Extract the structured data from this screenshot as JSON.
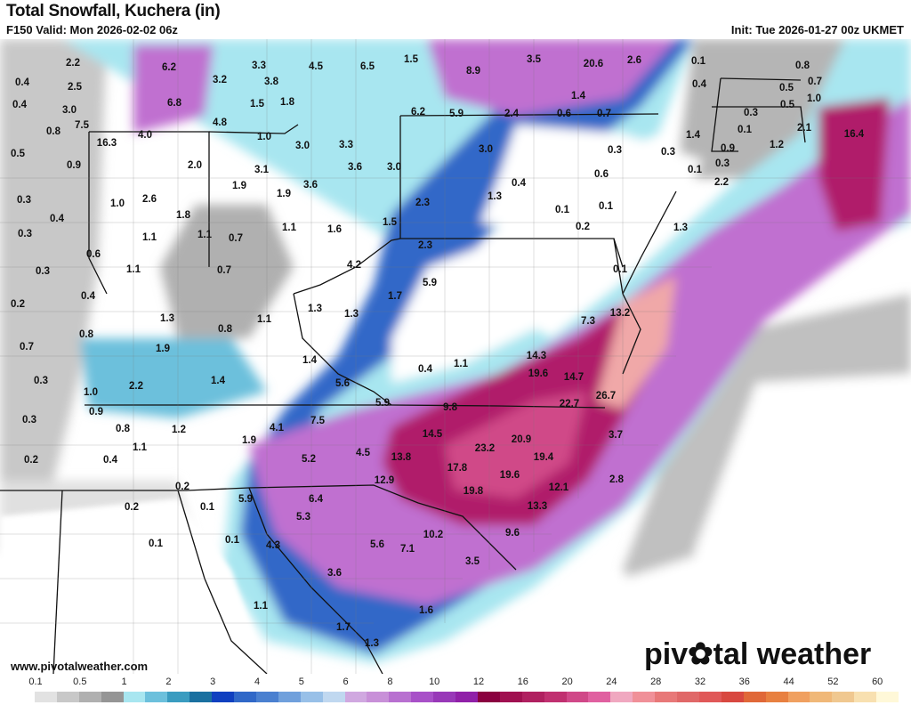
{
  "header": {
    "title": "Total Snowfall, Kuchera (in)",
    "valid": "F150 Valid: Mon 2026-02-02 06z",
    "init": "Init: Tue 2026-01-27 00z UKMET"
  },
  "footer": {
    "website": "www.pivotalweather.com",
    "logo_text_1": "piv",
    "logo_text_2": "tal weather"
  },
  "legend": {
    "labels": [
      "0.1",
      "0.5",
      "1",
      "2",
      "3",
      "4",
      "5",
      "6",
      "8",
      "10",
      "12",
      "16",
      "20",
      "24",
      "28",
      "32",
      "36",
      "44",
      "52",
      "60"
    ],
    "colors": [
      "#ffffff",
      "#e2e2e2",
      "#c8c8c8",
      "#b0b0b0",
      "#959595",
      "#a8e6f0",
      "#6cc0dc",
      "#3a9cc0",
      "#1a70a0",
      "#1040c0",
      "#3068c8",
      "#4a80d0",
      "#70a0dc",
      "#98c0e8",
      "#c0d8f0",
      "#d0a8e0",
      "#c890d8",
      "#b870d0",
      "#a850c8",
      "#9838b8",
      "#9020a8",
      "#8a0040",
      "#a01050",
      "#b02060",
      "#c03070",
      "#d04888",
      "#e060a0",
      "#f0a8c0",
      "#f09098",
      "#e87878",
      "#e06868",
      "#e05858",
      "#d84840",
      "#e06838",
      "#e88040",
      "#f0a060",
      "#f0b878",
      "#f0c890",
      "#f8e0b0",
      "#fff8d8"
    ]
  },
  "snow_totals_in": [
    "0.4",
    "0.4",
    "0.8",
    "0.5",
    "0.3",
    "0.4",
    "0.3",
    "0.3",
    "0.2",
    "0.7",
    "0.3",
    "0.3",
    "0.2",
    "2.2",
    "2.5",
    "3.0",
    "7.5",
    "16.3",
    "0.9",
    "6.2",
    "6.8",
    "3.2",
    "3.3",
    "3.8",
    "4.5",
    "6.5",
    "1.5",
    "8.9",
    "3.5",
    "20.6",
    "2.6",
    "0.1",
    "0.8",
    "0.4",
    "0.5",
    "0.7",
    "0.5",
    "1.4",
    "1.5",
    "1.8",
    "4.8",
    "4.0",
    "1.0",
    "3.0",
    "3.3",
    "6.2",
    "5.9",
    "2.4",
    "0.6",
    "0.7",
    "0.3",
    "1.0",
    "0.1",
    "2.1",
    "16.4",
    "1.4",
    "0.9",
    "1.2",
    "0.3",
    "0.3",
    "2.0",
    "3.1",
    "3.6",
    "3.0",
    "3.0",
    "0.6",
    "0.1",
    "0.3",
    "2.2",
    "0.4",
    "1.9",
    "1.9",
    "3.6",
    "1.3",
    "1.0",
    "2.6",
    "2.3",
    "0.1",
    "0.1",
    "0.2",
    "1.8",
    "1.5",
    "1.1",
    "1.1",
    "0.7",
    "1.1",
    "1.6",
    "1.3",
    "2.3",
    "0.6",
    "4.2",
    "0.7",
    "1.1",
    "5.9",
    "0.1",
    "0.4",
    "1.7",
    "1.3",
    "1.1",
    "1.3",
    "1.3",
    "0.8",
    "0.8",
    "13.2",
    "7.3",
    "1.9",
    "1.4",
    "14.3",
    "0.4",
    "1.1",
    "19.6",
    "2.2",
    "1.4",
    "5.6",
    "14.7",
    "1.0",
    "22.7",
    "26.7",
    "5.9",
    "9.8",
    "0.9",
    "0.8",
    "1.2",
    "4.1",
    "7.5",
    "14.5",
    "3.7",
    "1.1",
    "0.4",
    "1.9",
    "4.5",
    "13.8",
    "23.2",
    "20.9",
    "19.4",
    "5.2",
    "17.8",
    "19.6",
    "12.9",
    "2.8",
    "12.1",
    "19.8",
    "0.2",
    "6.4",
    "5.9",
    "0.1",
    "0.2",
    "13.3",
    "5.3",
    "9.6",
    "0.1",
    "0.1",
    "5.6",
    "7.1",
    "10.2",
    "4.3",
    "3.5",
    "3.6",
    "1.1",
    "1.6",
    "1.7",
    "1.3"
  ]
}
